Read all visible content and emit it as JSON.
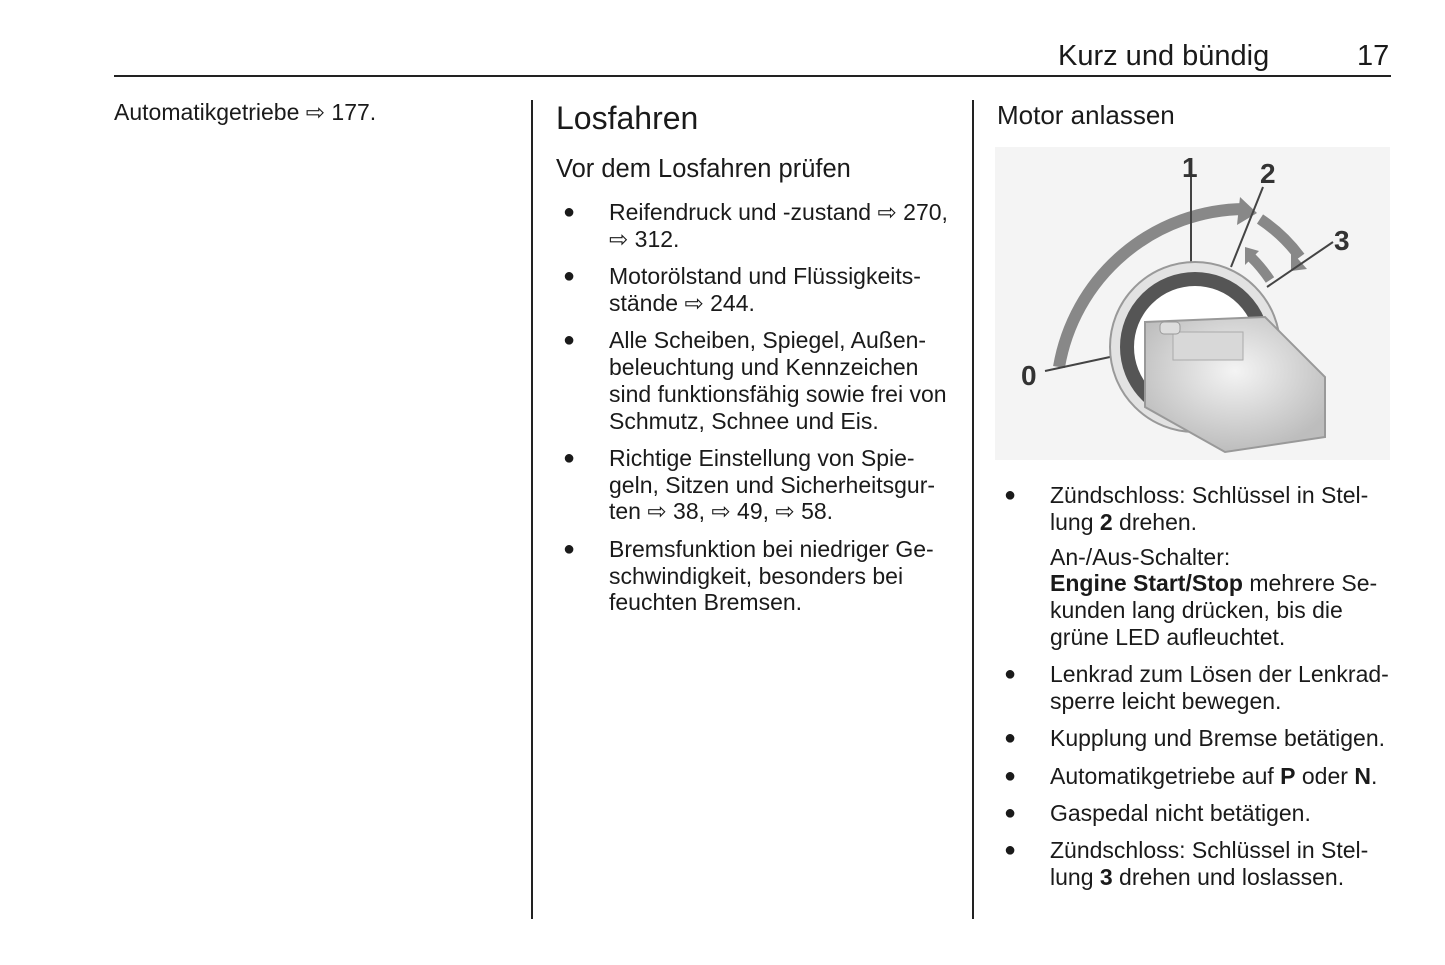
{
  "header": {
    "title": "Kurz und bündig",
    "page_number": "17"
  },
  "col1": {
    "text": "Automatikgetriebe ⇨ 177."
  },
  "col2": {
    "title": "Losfahren",
    "subtitle": "Vor dem Losfahren prüfen",
    "bullet": "●",
    "items": [
      {
        "lines": [
          [
            {
              "t": "Reifendruck und -zustand ⇨ 270,"
            }
          ],
          [
            {
              "t": "⇨ 312."
            }
          ]
        ]
      },
      {
        "lines": [
          [
            {
              "t": "Motorölstand und Flüssigkeits-"
            }
          ],
          [
            {
              "t": "stände ⇨ 244."
            }
          ]
        ]
      },
      {
        "lines": [
          [
            {
              "t": "Alle Scheiben, Spiegel, Außen-"
            }
          ],
          [
            {
              "t": "beleuchtung und Kennzeichen"
            }
          ],
          [
            {
              "t": "sind funktionsfähig sowie frei von"
            }
          ],
          [
            {
              "t": "Schmutz, Schnee und Eis."
            }
          ]
        ]
      },
      {
        "lines": [
          [
            {
              "t": "Richtige Einstellung von Spie-"
            }
          ],
          [
            {
              "t": "geln, Sitzen und Sicherheitsgur-"
            }
          ],
          [
            {
              "t": "ten ⇨ 38, ⇨ 49, ⇨ 58."
            }
          ]
        ]
      },
      {
        "lines": [
          [
            {
              "t": "Bremsfunktion bei niedriger Ge-"
            }
          ],
          [
            {
              "t": "schwindigkeit, besonders bei"
            }
          ],
          [
            {
              "t": "feuchten Bremsen."
            }
          ]
        ]
      }
    ]
  },
  "col3": {
    "title": "Motor anlassen",
    "figure": {
      "labels": [
        "0",
        "1",
        "2",
        "3"
      ],
      "icon": "ignition-key-illustration"
    },
    "bullet": "●",
    "items": [
      {
        "lines": [
          [
            {
              "t": "Zündschloss: Schlüssel in Stel-"
            }
          ],
          [
            {
              "t": "lung "
            },
            {
              "t": "2",
              "b": true
            },
            {
              "t": " drehen."
            }
          ]
        ],
        "sub": [
          [
            {
              "t": "An-/Aus-Schalter:"
            }
          ],
          [
            {
              "t": "Engine Start/Stop",
              "b": true
            },
            {
              "t": " mehrere Se-"
            }
          ],
          [
            {
              "t": "kunden lang drücken, bis die"
            }
          ],
          [
            {
              "t": "grüne LED aufleuchtet."
            }
          ]
        ]
      },
      {
        "lines": [
          [
            {
              "t": "Lenkrad zum Lösen der Lenkrad-"
            }
          ],
          [
            {
              "t": "sperre leicht bewegen."
            }
          ]
        ]
      },
      {
        "lines": [
          [
            {
              "t": "Kupplung und Bremse betätigen."
            }
          ]
        ]
      },
      {
        "lines": [
          [
            {
              "t": "Automatikgetriebe auf "
            },
            {
              "t": "P",
              "b": true
            },
            {
              "t": " oder "
            },
            {
              "t": "N",
              "b": true
            },
            {
              "t": "."
            }
          ]
        ]
      },
      {
        "lines": [
          [
            {
              "t": "Gaspedal nicht betätigen."
            }
          ]
        ]
      },
      {
        "lines": [
          [
            {
              "t": "Zündschloss: Schlüssel in Stel-"
            }
          ],
          [
            {
              "t": "lung "
            },
            {
              "t": "3",
              "b": true
            },
            {
              "t": " drehen und loslassen."
            }
          ]
        ]
      }
    ]
  }
}
